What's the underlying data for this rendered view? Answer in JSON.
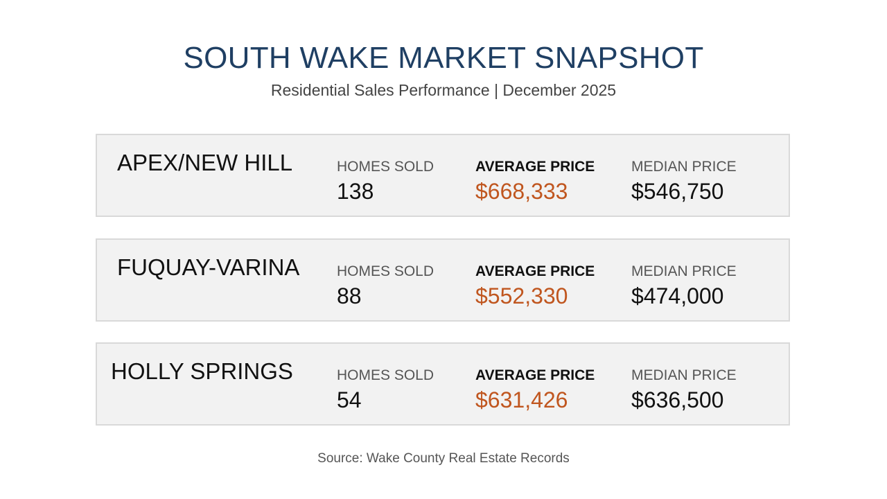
{
  "header": {
    "title": "SOUTH WAKE MARKET SNAPSHOT",
    "subtitle": "Residential Sales Performance | December 2025"
  },
  "labels": {
    "homes_sold": "HOMES SOLD",
    "average_price": "AVERAGE PRICE",
    "median_price": "MEDIAN PRICE"
  },
  "areas": [
    {
      "name": "APEX/NEW HILL",
      "homes_sold": "138",
      "average_price": "$668,333",
      "median_price": "$546,750"
    },
    {
      "name": "FUQUAY-VARINA",
      "homes_sold": "88",
      "average_price": "$552,330",
      "median_price": "$474,000"
    },
    {
      "name": "HOLLY SPRINGS",
      "homes_sold": "54",
      "average_price": "$631,426",
      "median_price": "$636,500"
    }
  ],
  "footer": {
    "source": "Source: Wake County Real Estate Records"
  },
  "colors": {
    "title": "#1f3f63",
    "accent": "#c0561f",
    "card_background": "#f2f2f2",
    "card_border": "#d9d9d9"
  }
}
